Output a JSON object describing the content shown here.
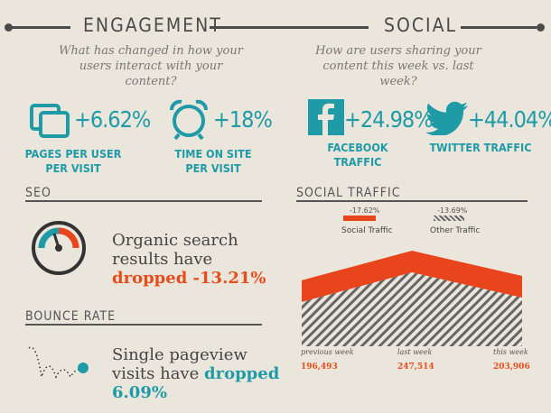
{
  "engagement": {
    "title": "ENGAGEMENT",
    "question": "What has changed in how your users interact with your content?",
    "metrics": [
      {
        "icon": "pages-icon",
        "value": "+6.62%",
        "label": "PAGES PER USER PER VISIT"
      },
      {
        "icon": "alarm-clock-icon",
        "value": "+18%",
        "label": "TIME ON SITE PER VISIT"
      }
    ]
  },
  "social": {
    "title": "SOCIAL",
    "question": "How are users sharing your content this week vs. last week?",
    "metrics": [
      {
        "icon": "facebook-icon",
        "value": "+24.98%",
        "label": "FACEBOOK TRAFFIC"
      },
      {
        "icon": "twitter-bird-icon",
        "value": "+44.04%",
        "label": "TWITTER TRAFFIC"
      }
    ]
  },
  "seo": {
    "title": "SEO",
    "icon": "speedometer-icon",
    "statement_prefix": "Organic search results have",
    "statement_highlight": "dropped -13.21%"
  },
  "bounce": {
    "title": "BOUNCE RATE",
    "icon": "bouncing-ball-icon",
    "statement_prefix": "Single pageview visits have",
    "statement_highlight": "dropped 6.09%"
  },
  "social_traffic": {
    "title": "SOCIAL TRAFFIC",
    "legend": [
      {
        "pct": "-17.62%",
        "name": "Social Traffic",
        "color": "#e8451c"
      },
      {
        "pct": "-13.69%",
        "name": "Other Traffic",
        "color": "#888888"
      }
    ]
  },
  "colors": {
    "teal": "#1f9ba8",
    "orange": "#e8451c",
    "dark": "#4a4a4a"
  },
  "chart_data": {
    "type": "area",
    "title": "SOCIAL TRAFFIC",
    "categories": [
      "previous week",
      "last week",
      "this week"
    ],
    "values": [
      196493,
      247514,
      203906
    ],
    "value_labels": [
      "196,493",
      "247,514",
      "203,906"
    ],
    "series": [
      {
        "name": "Social Traffic",
        "change": "-17.62%"
      },
      {
        "name": "Other Traffic",
        "change": "-13.69%"
      }
    ]
  }
}
